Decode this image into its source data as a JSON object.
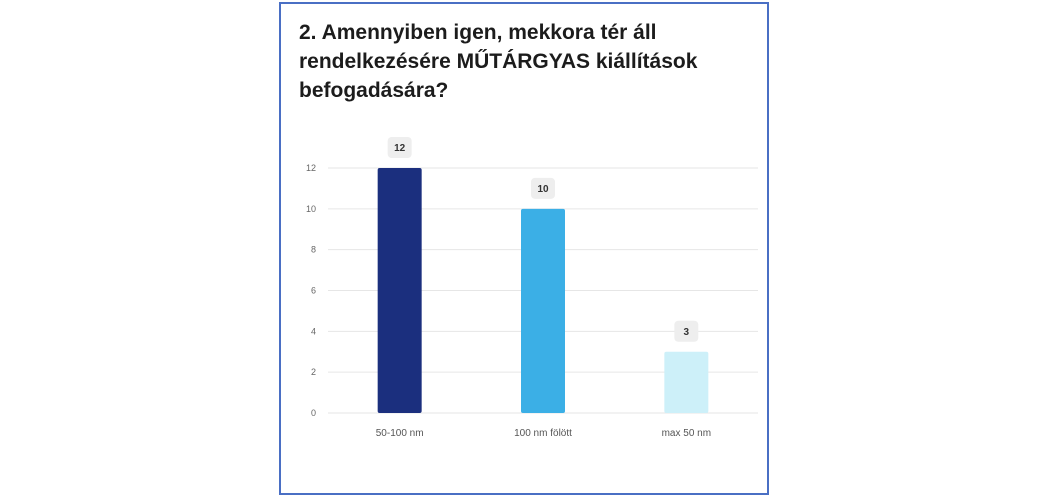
{
  "question": {
    "title": "2. Amennyiben igen, mekkora tér áll rendelkezésére MŰTÁRGYAS kiállítások befogadására?"
  },
  "colors": {
    "bar_1": "#1b2f7e",
    "bar_2": "#3bafe6",
    "bar_3": "#cdf0f9",
    "gridline": "#e6e6e6",
    "label_badge": "#eeeeee",
    "border": "#4a6fc4"
  },
  "chart_data": {
    "type": "bar",
    "categories": [
      "50-100 nm",
      "100 nm fölött",
      "max 50 nm"
    ],
    "values": [
      12,
      10,
      3
    ],
    "ylim": [
      0,
      12
    ],
    "yticks": [
      0,
      2,
      4,
      6,
      8,
      10,
      12
    ],
    "grid": true,
    "data_labels": true,
    "xlabel": "",
    "ylabel": ""
  }
}
